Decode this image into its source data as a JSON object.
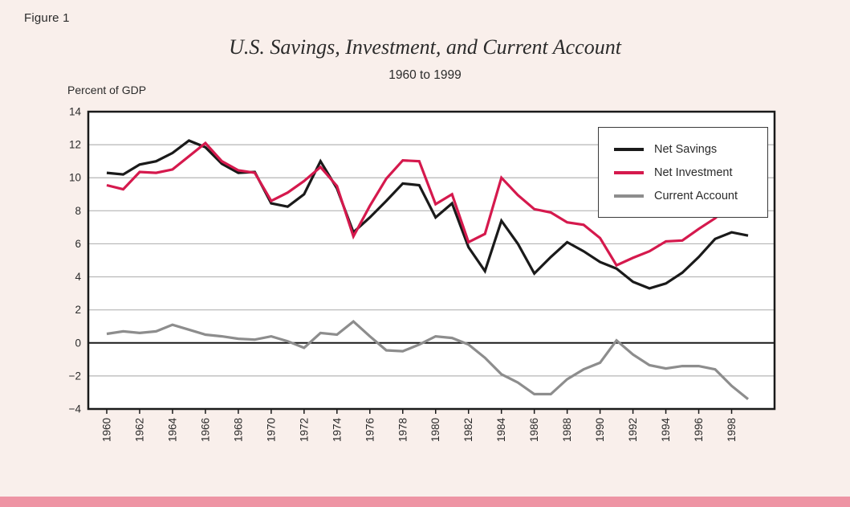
{
  "figure": {
    "label": "Figure 1"
  },
  "header": {
    "title": "U.S. Savings, Investment, and Current Account",
    "subtitle": "1960 to 1999"
  },
  "y_axis_unit": "Percent of GDP",
  "colors": {
    "background": "#f9efeb",
    "plot_bg": "#ffffff",
    "grid": "#b5b5b5",
    "axis": "#1a1a1a",
    "text": "#2b2b2b",
    "footer_bar": "#ee94a4",
    "net_savings": "#1a1a1a",
    "net_investment": "#d5194d",
    "current_account": "#8d8d8d"
  },
  "chart_data": {
    "type": "line",
    "title": "U.S. Savings, Investment, and Current Account",
    "subtitle": "1960 to 1999",
    "xlabel": "",
    "ylabel": "Percent of GDP",
    "ylim": [
      -4,
      14
    ],
    "y_ticks": [
      14,
      12,
      10,
      8,
      6,
      4,
      2,
      0,
      -2,
      -4
    ],
    "y_tick_labels": [
      "14",
      "12",
      "10",
      "8",
      "6",
      "4",
      "2",
      "0",
      "−2",
      "−4"
    ],
    "x_tick_years": [
      1960,
      1962,
      1964,
      1966,
      1968,
      1970,
      1972,
      1974,
      1976,
      1978,
      1980,
      1982,
      1984,
      1986,
      1988,
      1990,
      1992,
      1994,
      1996,
      1998
    ],
    "x_tick_labels": [
      "1960",
      "1962",
      "1964",
      "1966",
      "1968",
      "1970",
      "1972",
      "1974",
      "1976",
      "1978",
      "1980",
      "1982",
      "1984",
      "1986",
      "1988",
      "1990",
      "1992",
      "1994",
      "1996",
      "1998"
    ],
    "grid": true,
    "legend_position": "top-right-inside",
    "x": [
      1960,
      1961,
      1962,
      1963,
      1964,
      1965,
      1966,
      1967,
      1968,
      1969,
      1970,
      1971,
      1972,
      1973,
      1974,
      1975,
      1976,
      1977,
      1978,
      1979,
      1980,
      1981,
      1982,
      1983,
      1984,
      1985,
      1986,
      1987,
      1988,
      1989,
      1990,
      1991,
      1992,
      1993,
      1994,
      1995,
      1996,
      1997,
      1998,
      1999
    ],
    "series": [
      {
        "name": "Net Savings",
        "color": "#1a1a1a",
        "values": [
          10.3,
          10.2,
          10.8,
          11.0,
          11.5,
          12.25,
          11.85,
          10.85,
          10.3,
          10.35,
          8.45,
          8.25,
          9.0,
          11.0,
          9.35,
          6.7,
          7.6,
          8.6,
          9.65,
          9.55,
          7.6,
          8.45,
          5.8,
          4.35,
          7.4,
          6.0,
          4.2,
          5.2,
          6.1,
          5.55,
          4.9,
          4.5,
          3.7,
          3.3,
          3.6,
          4.25,
          5.2,
          6.3,
          6.7,
          6.5
        ]
      },
      {
        "name": "Net Investment",
        "color": "#d5194d",
        "values": [
          9.55,
          9.3,
          10.35,
          10.3,
          10.5,
          11.3,
          12.1,
          11.0,
          10.45,
          10.3,
          8.6,
          9.1,
          9.8,
          10.65,
          9.5,
          6.45,
          8.3,
          9.95,
          11.05,
          11.0,
          8.4,
          9.0,
          6.1,
          6.6,
          10.0,
          8.95,
          8.1,
          7.9,
          7.3,
          7.15,
          6.35,
          4.7,
          5.15,
          5.55,
          6.15,
          6.2,
          6.9,
          7.55,
          8.45,
          8.55
        ]
      },
      {
        "name": "Current Account",
        "color": "#8d8d8d",
        "values": [
          0.55,
          0.7,
          0.6,
          0.7,
          1.1,
          0.8,
          0.5,
          0.4,
          0.25,
          0.2,
          0.4,
          0.1,
          -0.3,
          0.6,
          0.5,
          1.3,
          0.4,
          -0.45,
          -0.5,
          -0.1,
          0.4,
          0.3,
          -0.1,
          -0.9,
          -1.9,
          -2.4,
          -3.1,
          -3.1,
          -2.2,
          -1.6,
          -1.2,
          0.15,
          -0.7,
          -1.35,
          -1.55,
          -1.4,
          -1.4,
          -1.6,
          -2.6,
          -3.4
        ]
      }
    ]
  }
}
